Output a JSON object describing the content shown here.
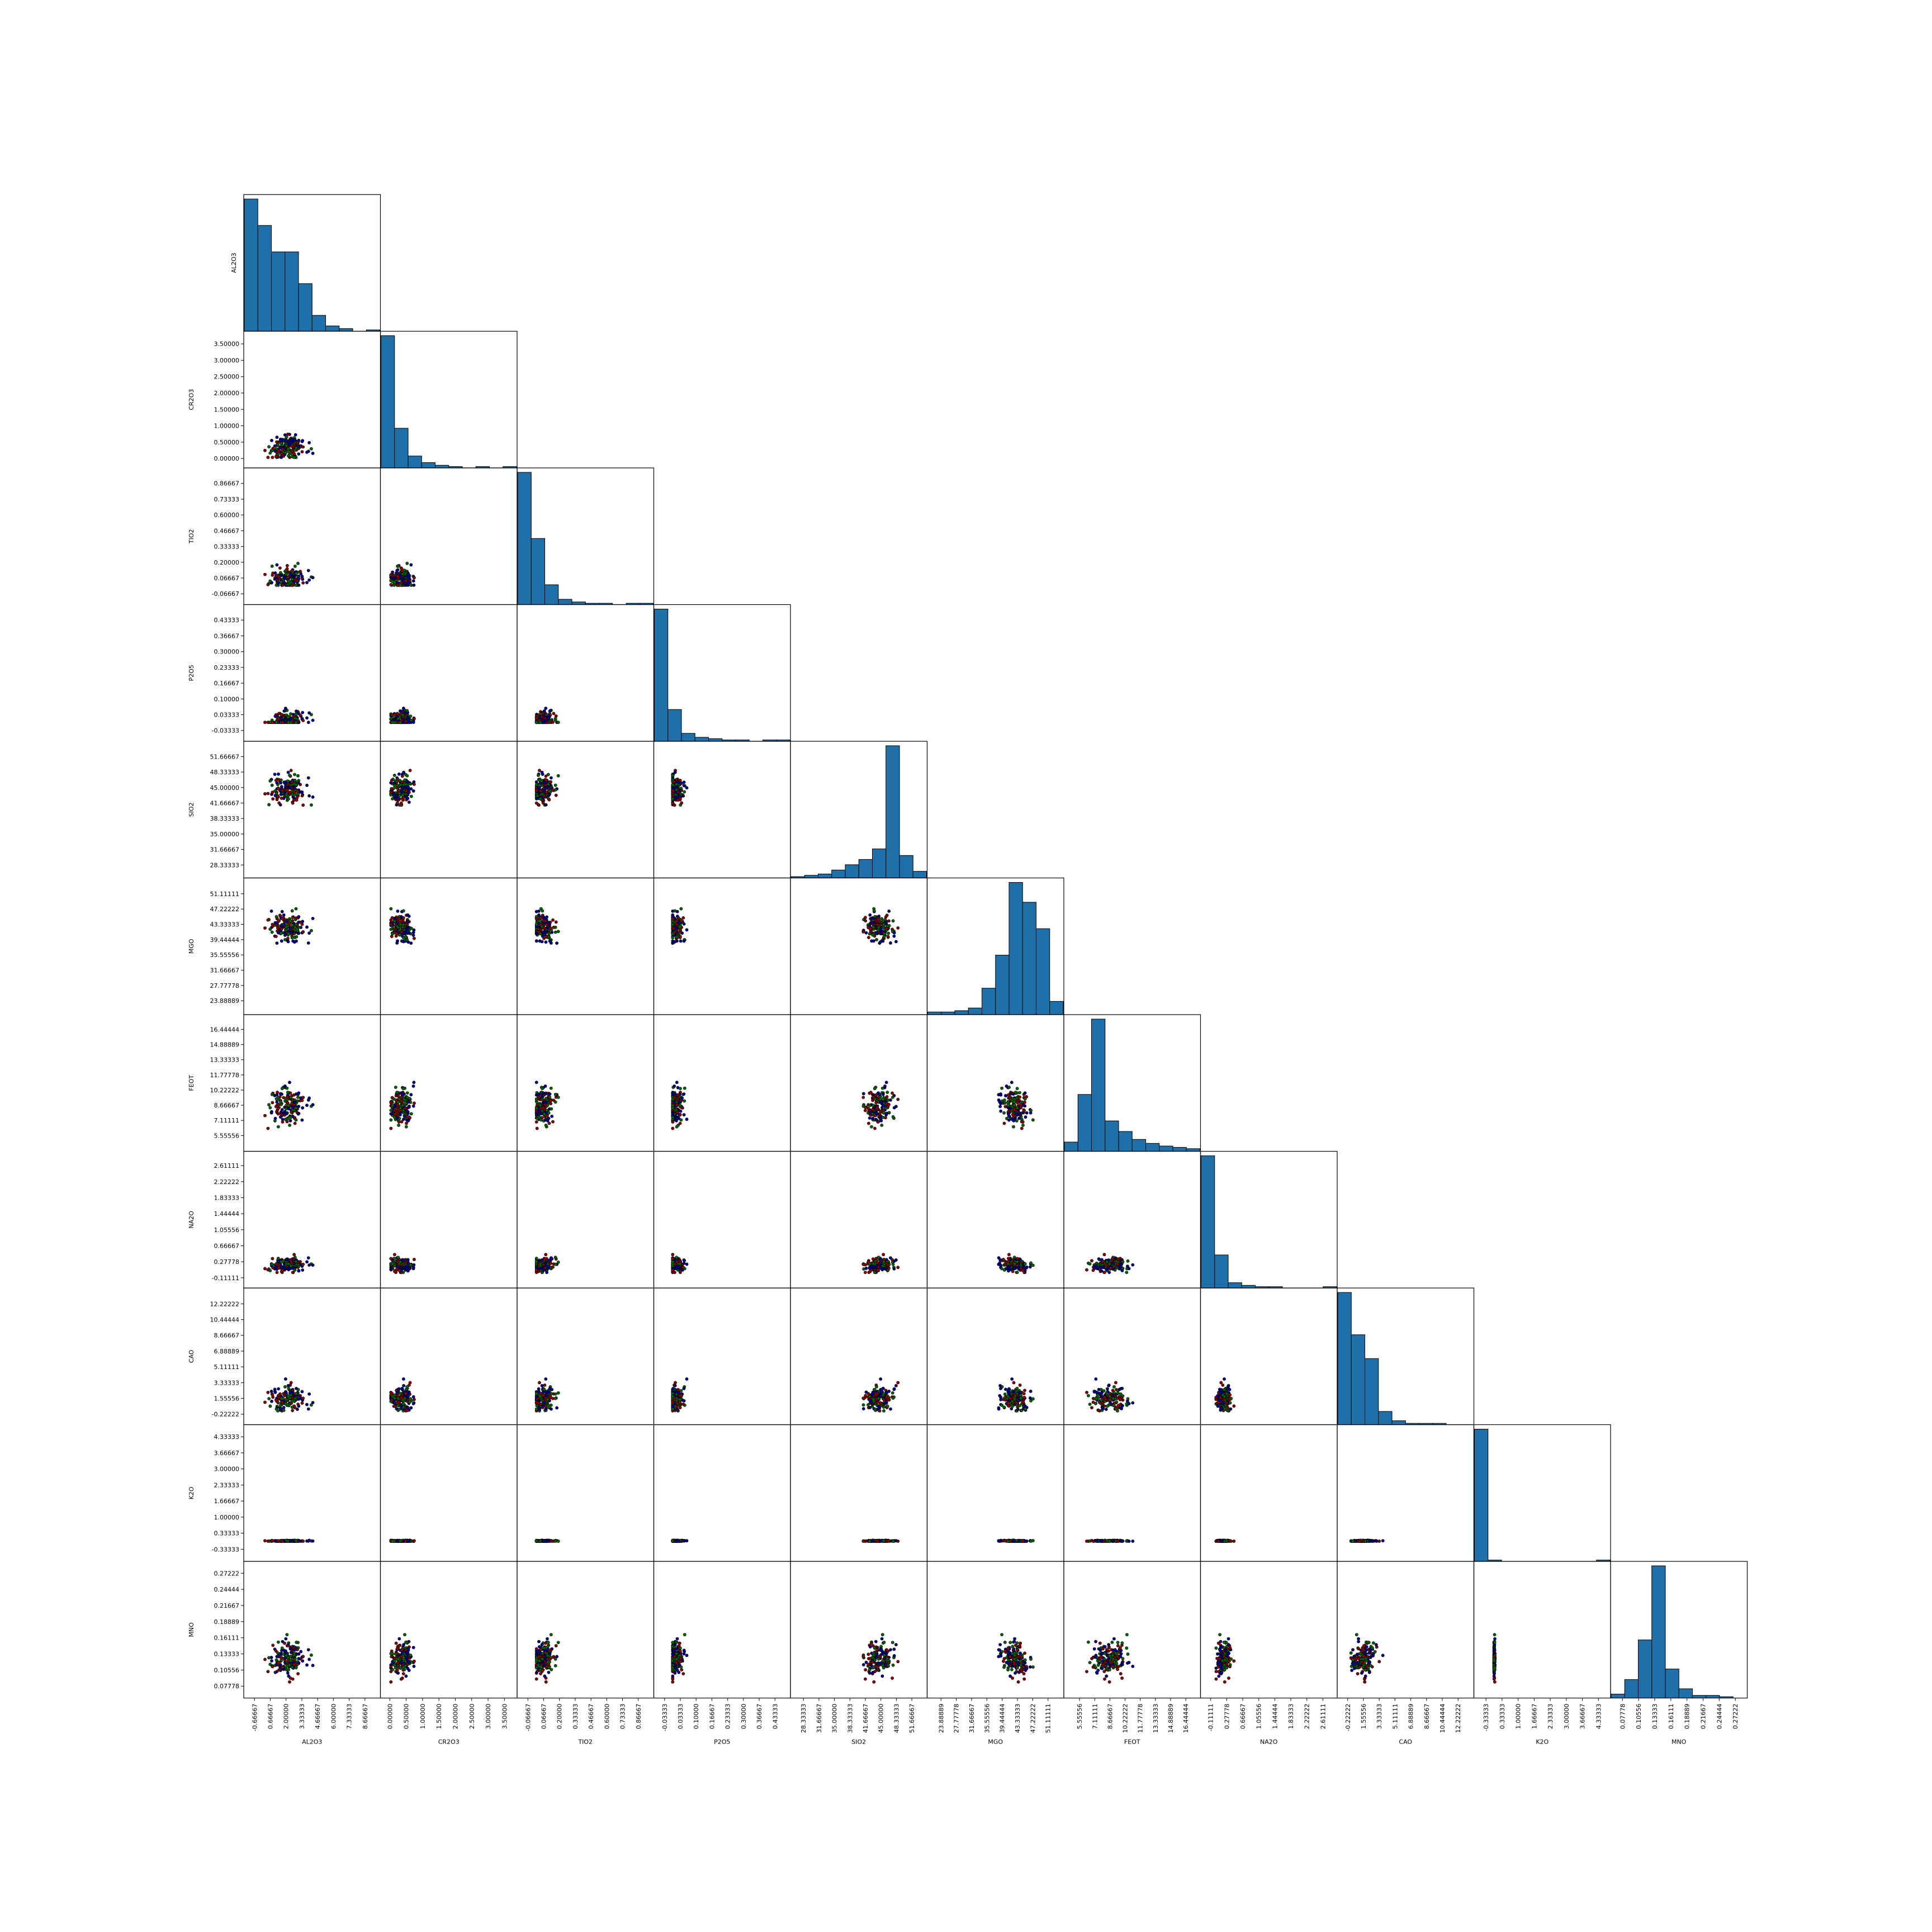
{
  "chart_data": {
    "type": "scatter",
    "title": "",
    "variables": [
      {
        "name": "AL2O3",
        "ticks": [
          "-0.66667",
          "0.66667",
          "2.00000",
          "3.33333",
          "4.66667",
          "6.00000",
          "7.33333",
          "8.66667"
        ],
        "range": [
          -1.2,
          9.6
        ]
      },
      {
        "name": "CR2O3",
        "ticks": [
          "0.00000",
          "0.50000",
          "1.00000",
          "1.50000",
          "2.00000",
          "2.50000",
          "3.00000",
          "3.50000"
        ],
        "range": [
          -0.15,
          3.75
        ]
      },
      {
        "name": "TIO2",
        "ticks": [
          "-0.06667",
          "0.06667",
          "0.20000",
          "0.33333",
          "0.46667",
          "0.60000",
          "0.73333",
          "0.86667"
        ],
        "range": [
          -0.12,
          0.96
        ]
      },
      {
        "name": "P2O5",
        "ticks": [
          "-0.03333",
          "0.03333",
          "0.10000",
          "0.16667",
          "0.23333",
          "0.30000",
          "0.36667",
          "0.43333"
        ],
        "range": [
          -0.06,
          0.48
        ]
      },
      {
        "name": "SIO2",
        "ticks": [
          "28.33333",
          "31.66667",
          "35.00000",
          "38.33333",
          "41.66667",
          "45.00000",
          "48.33333",
          "51.66667"
        ],
        "range": [
          26.5,
          54.0
        ]
      },
      {
        "name": "MGO",
        "ticks": [
          "23.88889",
          "27.77778",
          "31.66667",
          "35.55556",
          "39.44444",
          "43.33333",
          "47.22222",
          "51.11111"
        ],
        "range": [
          21.5,
          54.0
        ]
      },
      {
        "name": "FEOT",
        "ticks": [
          "5.55556",
          "7.11111",
          "8.66667",
          "10.22222",
          "11.77778",
          "13.33333",
          "14.88889",
          "16.44444"
        ],
        "range": [
          4.4,
          17.5
        ]
      },
      {
        "name": "NA2O",
        "ticks": [
          "-0.11111",
          "0.27778",
          "0.66667",
          "1.05556",
          "1.44444",
          "1.83333",
          "2.22222",
          "2.61111"
        ],
        "range": [
          -0.25,
          2.85
        ]
      },
      {
        "name": "CAO",
        "ticks": [
          "-0.22222",
          "1.55556",
          "3.33333",
          "5.11111",
          "6.88889",
          "8.66667",
          "10.44444",
          "12.22222"
        ],
        "range": [
          -0.9,
          13.5
        ]
      },
      {
        "name": "K2O",
        "ticks": [
          "-0.33333",
          "0.33333",
          "1.00000",
          "1.66667",
          "2.33333",
          "3.00000",
          "3.66667",
          "4.33333"
        ],
        "range": [
          -0.65,
          4.65
        ]
      },
      {
        "name": "MNO",
        "ticks": [
          "0.07778",
          "0.10556",
          "0.13333",
          "0.16111",
          "0.18889",
          "0.21667",
          "0.24444",
          "0.27222"
        ],
        "range": [
          0.065,
          0.285
        ]
      }
    ],
    "histograms": [
      [
        100,
        80,
        60,
        60,
        36,
        12,
        4,
        2,
        0,
        1
      ],
      [
        100,
        30,
        9,
        4,
        2,
        1,
        0,
        1,
        0,
        1
      ],
      [
        100,
        50,
        15,
        4,
        2,
        1,
        1,
        0,
        1,
        1
      ],
      [
        100,
        24,
        6,
        3,
        2,
        1,
        1,
        0,
        1,
        1
      ],
      [
        1,
        2,
        3,
        6,
        10,
        14,
        22,
        100,
        17,
        5
      ],
      [
        2,
        2,
        3,
        5,
        20,
        45,
        100,
        85,
        65,
        10
      ],
      [
        7,
        43,
        100,
        23,
        15,
        9,
        6,
        4,
        3,
        2
      ],
      [
        100,
        25,
        4,
        2,
        1,
        1,
        0,
        0,
        0,
        1
      ],
      [
        100,
        68,
        50,
        10,
        3,
        1,
        1,
        1,
        0,
        0
      ],
      [
        100,
        1,
        0,
        0,
        0,
        0,
        0,
        0,
        0,
        1
      ],
      [
        3,
        14,
        44,
        100,
        22,
        7,
        2,
        2,
        1,
        0
      ]
    ],
    "series_colors": [
      "#00008b",
      "#8b0000",
      "#006400"
    ],
    "point_edge_color": "#000000",
    "hist_color": "#1f6fa8",
    "layout": "lower-triangle pair plot with histograms on diagonal",
    "grid": false
  }
}
